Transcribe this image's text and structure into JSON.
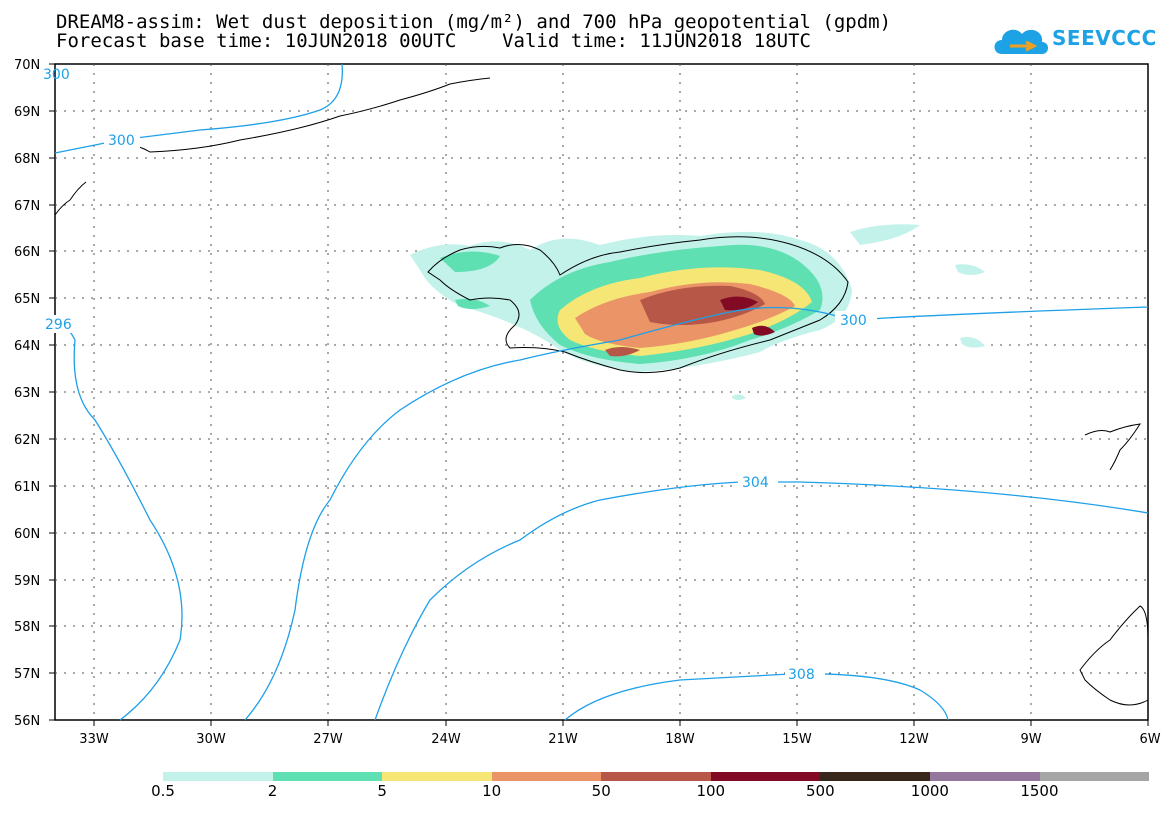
{
  "title": {
    "line1": "DREAM8-assim: Wet dust deposition (mg/m²) and 700 hPa geopotential (gpdm)",
    "line2": "Forecast base time: 10JUN2018 00UTC    Valid time: 11JUN2018 18UTC"
  },
  "logo": {
    "text": "SEEVCCC",
    "color": "#1da2e6",
    "icon": "cloud-icon"
  },
  "map": {
    "lat_labels": [
      "70N",
      "69N",
      "68N",
      "67N",
      "66N",
      "65N",
      "64N",
      "63N",
      "62N",
      "61N",
      "60N",
      "59N",
      "58N",
      "57N",
      "56N"
    ],
    "lon_labels": [
      "33W",
      "30W",
      "27W",
      "24W",
      "21W",
      "18W",
      "15W",
      "12W",
      "9W",
      "6W"
    ],
    "lat_range": [
      56,
      70
    ],
    "lon_range": [
      -34.2,
      -6
    ],
    "grid": "dotted",
    "contour_color": "#1ea0e8",
    "contour_labels": [
      "300",
      "300",
      "296",
      "300",
      "304",
      "308"
    ]
  },
  "legend": {
    "colors": [
      "#c2f2ea",
      "#5fe0b2",
      "#f5e675",
      "#eb9468",
      "#b65748",
      "#820a25",
      "#38281b",
      "#95779e",
      "#a5a5a5"
    ],
    "labels": [
      "0.5",
      "2",
      "5",
      "10",
      "50",
      "100",
      "500",
      "1000",
      "1500"
    ]
  }
}
